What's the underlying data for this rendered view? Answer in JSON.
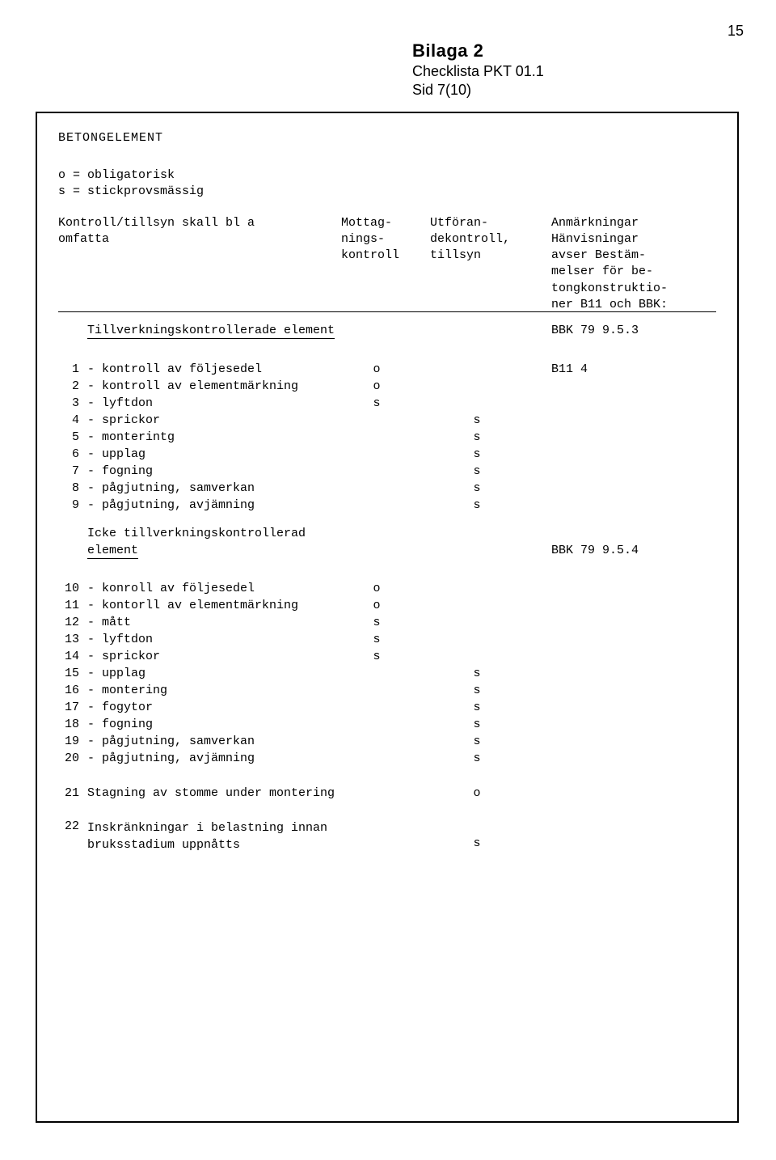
{
  "page_number": "15",
  "header": {
    "title": "Bilaga 2",
    "sub1": "Checklista PKT 01.1",
    "sub2": "Sid 7(10)"
  },
  "section_title": "BETONGELEMENT",
  "legend": {
    "line1": "o = obligatorisk",
    "line2": "s = stickprovsmässig"
  },
  "col_headers": {
    "left1": "Kontroll/tillsyn skall bl a",
    "left2": "omfatta",
    "c1a": "Mottag-",
    "c1b": "nings-",
    "c1c": "kontroll",
    "c2a": "Utföran-",
    "c2b": "dekontroll,",
    "c2c": "tillsyn",
    "c3a": "Anmärkningar",
    "c3b": "Hänvisningar",
    "c3c": "avser Bestäm-",
    "c3d": "melser för be-",
    "c3e": "tongkonstruktio-",
    "c3f": "ner B11 och BBK:"
  },
  "sub1": {
    "text": "Tillverkningskontrollerade element",
    "ref": "BBK 79 9.5.3"
  },
  "rows1": [
    {
      "n": "1",
      "lbl": "- kontroll av följesedel",
      "c1": "o",
      "c2": "",
      "c3": "B11 4"
    },
    {
      "n": "2",
      "lbl": "- kontroll av elementmärkning",
      "c1": "o",
      "c2": "",
      "c3": ""
    },
    {
      "n": "3",
      "lbl": "- lyftdon",
      "c1": "s",
      "c2": "",
      "c3": ""
    },
    {
      "n": "4",
      "lbl": "- sprickor",
      "c1": "",
      "c2": "s",
      "c3": ""
    },
    {
      "n": "5",
      "lbl": "- monterintg",
      "c1": "",
      "c2": "s",
      "c3": ""
    },
    {
      "n": "6",
      "lbl": "- upplag",
      "c1": "",
      "c2": "s",
      "c3": ""
    },
    {
      "n": "7",
      "lbl": "- fogning",
      "c1": "",
      "c2": "s",
      "c3": ""
    },
    {
      "n": "8",
      "lbl": "- pågjutning, samverkan",
      "c1": "",
      "c2": "s",
      "c3": ""
    },
    {
      "n": "9",
      "lbl": "- pågjutning, avjämning",
      "c1": "",
      "c2": "s",
      "c3": ""
    }
  ],
  "sub2": {
    "line1": "Icke tillverkningskontrollerad",
    "line2": "element",
    "ref": "BBK 79 9.5.4"
  },
  "rows2": [
    {
      "n": "10",
      "lbl": "- konroll av följesedel",
      "c1": "o",
      "c2": "",
      "c3": ""
    },
    {
      "n": "11",
      "lbl": "- kontorll av elementmärkning",
      "c1": "o",
      "c2": "",
      "c3": ""
    },
    {
      "n": "12",
      "lbl": "- mått",
      "c1": "s",
      "c2": "",
      "c3": ""
    },
    {
      "n": "13",
      "lbl": "- lyftdon",
      "c1": "s",
      "c2": "",
      "c3": ""
    },
    {
      "n": "14",
      "lbl": "- sprickor",
      "c1": "s",
      "c2": "",
      "c3": ""
    },
    {
      "n": "15",
      "lbl": "- upplag",
      "c1": "",
      "c2": "s",
      "c3": ""
    },
    {
      "n": "16",
      "lbl": "- montering",
      "c1": "",
      "c2": "s",
      "c3": ""
    },
    {
      "n": "17",
      "lbl": "- fogytor",
      "c1": "",
      "c2": "s",
      "c3": ""
    },
    {
      "n": "18",
      "lbl": "- fogning",
      "c1": "",
      "c2": "s",
      "c3": ""
    },
    {
      "n": "19",
      "lbl": "- pågjutning, samverkan",
      "c1": "",
      "c2": "s",
      "c3": ""
    },
    {
      "n": "20",
      "lbl": "- pågjutning, avjämning",
      "c1": "",
      "c2": "s",
      "c3": ""
    }
  ],
  "row21": {
    "n": "21",
    "lbl": "Stagning av stomme under montering",
    "c1": "",
    "c2": "o",
    "c3": ""
  },
  "row22": {
    "n": "22",
    "lbl1": "Inskränkningar i belastning innan",
    "lbl2": "bruksstadium uppnåtts",
    "c2": "s"
  }
}
